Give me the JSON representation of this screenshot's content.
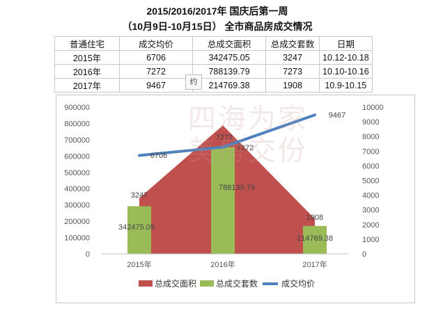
{
  "header": {
    "title_line1": "2015/2016/2017年 国庆后第一周",
    "title_line2": "（10月9日-10月15日） 全市商品房成交情况"
  },
  "table": {
    "columns": [
      "普通住宅",
      "成交均价",
      "总成交面积",
      "总成交套数",
      "日期"
    ],
    "rows": [
      [
        "2015年",
        "6706",
        "342475.05",
        "3247",
        "10.12-10.18"
      ],
      [
        "2016年",
        "7272",
        "788139.79",
        "7273",
        "10.10-10.16"
      ],
      [
        "2017年",
        "9467",
        "214769.38",
        "1908",
        "10.9-10.15"
      ]
    ]
  },
  "tooltip_text": "约",
  "watermark": {
    "line1": "四海为家",
    "line2": "美房交份"
  },
  "chart_data": {
    "type": "combo",
    "categories": [
      "2015年",
      "2016年",
      "2017年"
    ],
    "series": [
      {
        "name": "总成交面积",
        "kind": "area",
        "axis": "left",
        "values": [
          342475.05,
          788139.79,
          214769.38
        ],
        "labels": [
          "342475.05",
          "788139.79",
          "214769.38"
        ],
        "color": "#c0504d"
      },
      {
        "name": "总成交套数",
        "kind": "bar",
        "axis": "right",
        "values": [
          3247,
          7273,
          1908
        ],
        "labels": [
          "3247",
          "7273",
          "1908"
        ],
        "color": "#9bbb59"
      },
      {
        "name": "成交均价",
        "kind": "line",
        "axis": "right",
        "values": [
          6706,
          7272,
          9467
        ],
        "labels": [
          "6706",
          "7272",
          "9467"
        ],
        "color": "#4f81bd"
      }
    ],
    "left_axis": {
      "min": 0,
      "max": 900000,
      "ticks": [
        "0",
        "100000",
        "200000",
        "300000",
        "400000",
        "500000",
        "600000",
        "700000",
        "800000",
        "900000"
      ]
    },
    "right_axis": {
      "min": 0,
      "max": 10000,
      "ticks": [
        "0",
        "1000",
        "2000",
        "3000",
        "4000",
        "5000",
        "6000",
        "7000",
        "8000",
        "9000",
        "10000"
      ]
    },
    "grid": false,
    "legend": "bottom"
  }
}
